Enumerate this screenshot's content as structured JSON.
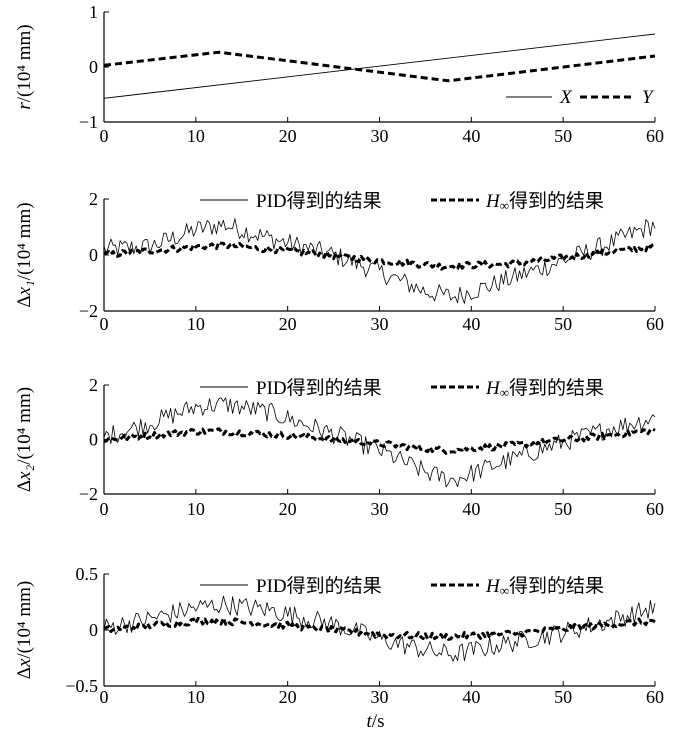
{
  "chart_data": [
    {
      "type": "line",
      "ylabel": "r/(10⁴ mm)",
      "xlim": [
        0,
        60
      ],
      "ylim": [
        -1,
        1
      ],
      "xticks": [
        "0",
        "10",
        "20",
        "30",
        "40",
        "50",
        "60"
      ],
      "yticks": [
        "−1",
        "0",
        "1"
      ],
      "legend": "bottom-right",
      "series": [
        {
          "name": "X",
          "style": "thin",
          "x": [
            0,
            60
          ],
          "y": [
            -0.57,
            0.6
          ]
        },
        {
          "name": "Y",
          "style": "dashed",
          "x": [
            0,
            12.5,
            37.5,
            60
          ],
          "y": [
            0.03,
            0.27,
            -0.25,
            0.2
          ]
        }
      ]
    },
    {
      "type": "line",
      "ylabel": "Δx₁/(10⁴ mm)",
      "xlim": [
        0,
        60
      ],
      "ylim": [
        -2,
        2
      ],
      "xticks": [
        "0",
        "10",
        "20",
        "30",
        "40",
        "50",
        "60"
      ],
      "yticks": [
        "−2",
        "0",
        "2"
      ],
      "legend": "top",
      "series": [
        {
          "name": "PID得到的结果",
          "style": "thin-noisy",
          "x": [
            0,
            5,
            10,
            13,
            18,
            25,
            30,
            35,
            38,
            42,
            50,
            55,
            60
          ],
          "y": [
            0.2,
            0.3,
            0.9,
            1.1,
            0.6,
            0.0,
            -0.6,
            -1.3,
            -1.5,
            -1.1,
            -0.2,
            0.4,
            1.1
          ]
        },
        {
          "name": "H∞得到的结果",
          "style": "dashed-thick",
          "x": [
            0,
            10,
            13,
            20,
            30,
            37,
            45,
            55,
            60
          ],
          "y": [
            0.0,
            0.3,
            0.35,
            0.15,
            -0.2,
            -0.4,
            -0.3,
            0.1,
            0.3
          ]
        }
      ]
    },
    {
      "type": "line",
      "ylabel": "Δx₂/(10⁴ mm)",
      "xlim": [
        0,
        60
      ],
      "ylim": [
        -2,
        2
      ],
      "xticks": [
        "0",
        "10",
        "20",
        "30",
        "40",
        "50",
        "60"
      ],
      "yticks": [
        "−2",
        "0",
        "2"
      ],
      "legend": "top",
      "series": [
        {
          "name": "PID得到的结果",
          "style": "thin-noisy",
          "x": [
            0,
            5,
            10,
            13,
            18,
            25,
            30,
            35,
            38,
            42,
            50,
            55,
            60
          ],
          "y": [
            0.1,
            0.6,
            1.2,
            1.3,
            1.0,
            0.2,
            -0.4,
            -1.2,
            -1.5,
            -1.0,
            -0.1,
            0.4,
            0.8
          ]
        },
        {
          "name": "H∞得到的结果",
          "style": "dashed-thick",
          "x": [
            0,
            10,
            13,
            20,
            30,
            37,
            45,
            55,
            60
          ],
          "y": [
            0.0,
            0.3,
            0.3,
            0.15,
            -0.15,
            -0.4,
            -0.2,
            0.15,
            0.35
          ]
        }
      ]
    },
    {
      "type": "line",
      "ylabel": "Δx/(10⁴ mm)",
      "xlabel": "t/s",
      "xlim": [
        0,
        60
      ],
      "ylim": [
        -0.5,
        0.5
      ],
      "xticks": [
        "0",
        "10",
        "20",
        "30",
        "40",
        "50",
        "60"
      ],
      "yticks": [
        "−0.5",
        "0",
        "0.5"
      ],
      "legend": "top",
      "series": [
        {
          "name": "PID得到的结果",
          "style": "thin-noisy",
          "x": [
            0,
            5,
            10,
            13,
            18,
            25,
            30,
            35,
            38,
            42,
            50,
            55,
            60
          ],
          "y": [
            0.02,
            0.1,
            0.2,
            0.23,
            0.18,
            0.05,
            -0.08,
            -0.18,
            -0.22,
            -0.15,
            -0.02,
            0.08,
            0.2
          ]
        },
        {
          "name": "H∞得到的结果",
          "style": "dashed-thick",
          "x": [
            0,
            10,
            13,
            20,
            30,
            37,
            45,
            55,
            60
          ],
          "y": [
            0.0,
            0.08,
            0.08,
            0.04,
            -0.04,
            -0.06,
            -0.03,
            0.05,
            0.08
          ]
        }
      ]
    }
  ]
}
